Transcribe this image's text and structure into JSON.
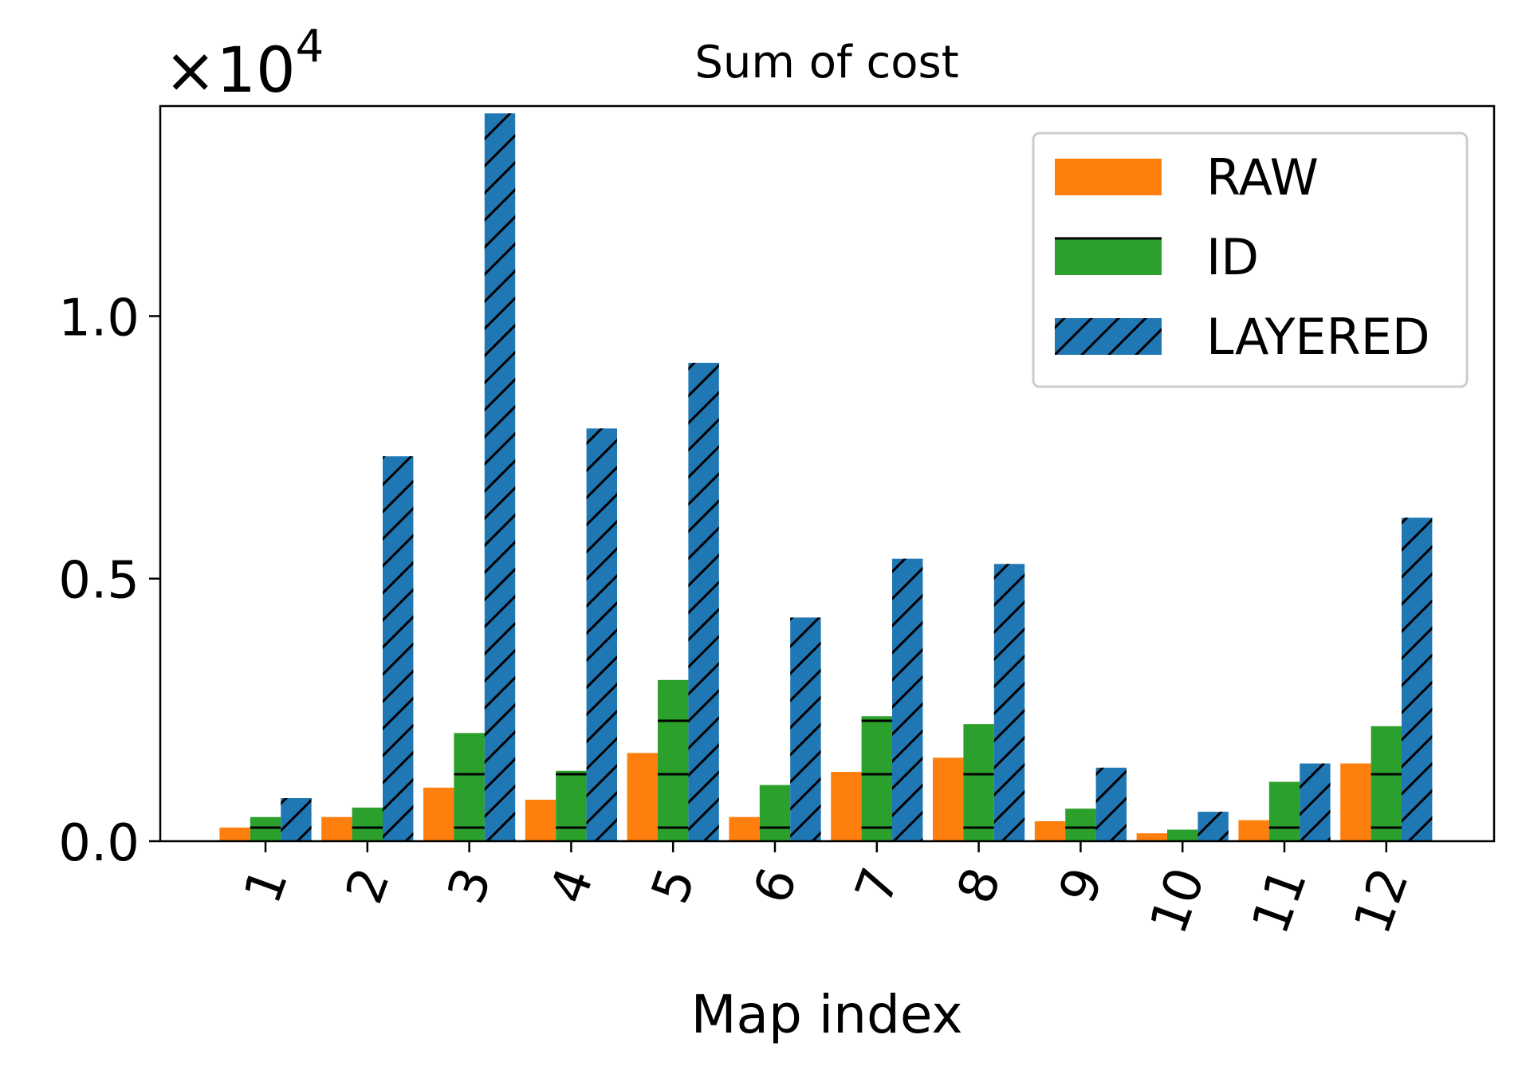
{
  "chart_data": {
    "type": "bar",
    "title": "Sum of cost",
    "xlabel": "Map index",
    "ylabel": "",
    "scale_label": "×10",
    "scale_exponent": "4",
    "categories": [
      "1",
      "2",
      "3",
      "4",
      "5",
      "6",
      "7",
      "8",
      "9",
      "10",
      "11",
      "12"
    ],
    "ylim": [
      0,
      1.4
    ],
    "yticks": [
      "0.0",
      "0.5",
      "1.0"
    ],
    "ytick_values": [
      0,
      0.5,
      1.0
    ],
    "legend_position": "top-right",
    "series": [
      {
        "name": "RAW",
        "color": "#ff7f0e",
        "hatch": "none",
        "values": [
          0.026,
          0.046,
          0.102,
          0.079,
          0.168,
          0.046,
          0.132,
          0.159,
          0.038,
          0.015,
          0.04,
          0.148
        ]
      },
      {
        "name": "ID",
        "color": "#2ca02c",
        "hatch": "horizontal",
        "values": [
          0.046,
          0.064,
          0.206,
          0.134,
          0.307,
          0.107,
          0.238,
          0.223,
          0.062,
          0.022,
          0.113,
          0.219
        ]
      },
      {
        "name": "LAYERED",
        "color": "#1f77b4",
        "hatch": "diagonal",
        "values": [
          0.082,
          0.733,
          1.386,
          0.786,
          0.911,
          0.426,
          0.538,
          0.528,
          0.14,
          0.056,
          0.148,
          0.616
        ]
      }
    ]
  }
}
